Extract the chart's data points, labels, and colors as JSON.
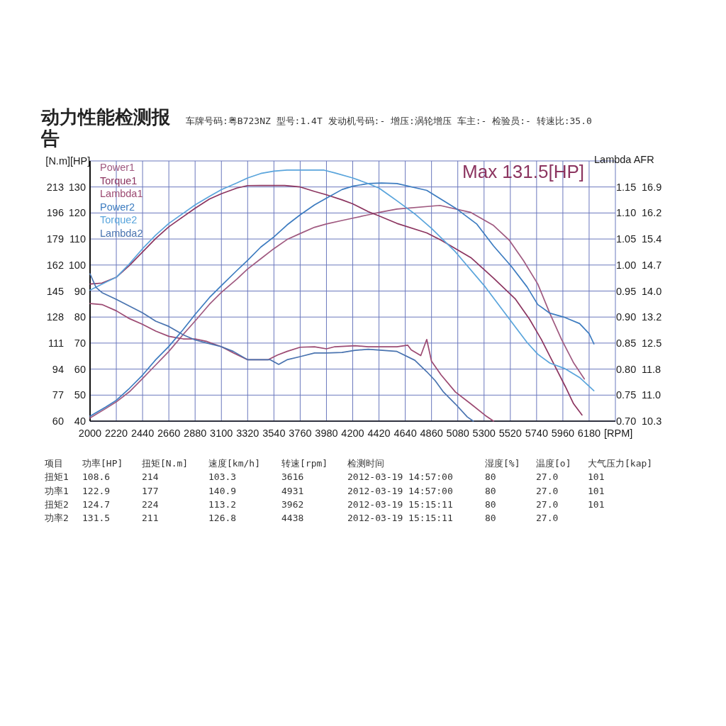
{
  "chart_data": {
    "type": "line",
    "title": "动力性能检测报告",
    "subtitle": "车牌号码:粤B723NZ 型号:1.4T 发动机号码:- 增压:涡轮增压 车主:- 检验员:- 转速比:35.0",
    "xlabel": "[RPM]",
    "ylabel": "[N.m]",
    "y2label": "[HP]",
    "y3label": "Lambda AFR",
    "xlim": [
      2000,
      6400
    ],
    "xticks": [
      2000,
      2220,
      2440,
      2660,
      2880,
      3100,
      3320,
      3540,
      3760,
      3980,
      4200,
      4420,
      4640,
      4860,
      5080,
      5300,
      5520,
      5740,
      5960,
      6180
    ],
    "ylim": [
      60,
      230
    ],
    "yticks": [
      60,
      77,
      94,
      111,
      128,
      145,
      162,
      179,
      196,
      213
    ],
    "y2lim": [
      40,
      140
    ],
    "y2ticks": [
      40,
      50,
      60,
      70,
      80,
      90,
      100,
      110,
      120,
      130
    ],
    "y3lim": [
      0.7,
      1.2
    ],
    "y3ticks": [
      {
        "value": 0.7,
        "label": "0.70"
      },
      0.75,
      {
        "value": 0.8,
        "label": "0.80"
      },
      0.85,
      {
        "value": 0.9,
        "label": "0.90"
      },
      0.95,
      {
        "value": 1,
        "label": "1.00"
      },
      1.05,
      {
        "value": 1.1,
        "label": "1.10"
      },
      1.15
    ],
    "grid": true,
    "legend": "top left",
    "series": [
      {
        "name": "Power1",
        "color": "#a05a80",
        "axis": "y2",
        "x": [
          2000,
          2130,
          2220,
          2330,
          2440,
          2550,
          2660,
          2780,
          2880,
          3000,
          3100,
          3230,
          3320,
          3430,
          3540,
          3650,
          3760,
          3880,
          3980,
          4110,
          4200,
          4330,
          4420,
          4570,
          4930,
          5190,
          5380,
          5510,
          5630,
          5750,
          5850,
          5950,
          6050,
          6140
        ],
        "values": [
          41.2,
          44.8,
          47.4,
          51.3,
          56.4,
          61.6,
          66.8,
          73.3,
          78.5,
          84.9,
          89.5,
          94.6,
          98.5,
          102.4,
          106.3,
          109.8,
          112.1,
          114.5,
          115.8,
          117.1,
          118,
          119.3,
          120.2,
          121.5,
          122.9,
          120.2,
          115.2,
          109.6,
          101.7,
          92.7,
          81.5,
          71.3,
          62.4,
          56.2
        ]
      },
      {
        "name": "Torque1",
        "color": "#8c3560",
        "axis": "y",
        "x": [
          2000,
          2100,
          2220,
          2330,
          2440,
          2550,
          2660,
          2780,
          2880,
          3000,
          3100,
          3230,
          3320,
          3430,
          3540,
          3630,
          3760,
          3880,
          3980,
          4110,
          4200,
          4330,
          4420,
          4570,
          4820,
          4940,
          5190,
          5380,
          5560,
          5680,
          5780,
          5880,
          5980,
          6050,
          6120
        ],
        "values": [
          149.6,
          150.2,
          154,
          161.7,
          170.5,
          179.3,
          187,
          193.6,
          199.1,
          205.1,
          208.6,
          212.3,
          213.9,
          214,
          214,
          214,
          213,
          210.1,
          207.9,
          204.6,
          202,
          196.9,
          194.1,
          189.2,
          183,
          178.2,
          166.8,
          153.4,
          140,
          126.7,
          113.3,
          98,
          82.7,
          71.3,
          64
        ]
      },
      {
        "name": "Lambda1",
        "color": "#9c4a72",
        "axis": "y3",
        "x": [
          2000,
          2100,
          2220,
          2330,
          2440,
          2550,
          2660,
          2780,
          2880,
          2980,
          3100,
          3200,
          3320,
          3430,
          3490,
          3570,
          3650,
          3760,
          3880,
          3980,
          4050,
          4220,
          4330,
          4570,
          4660,
          4690,
          4770,
          4820,
          4860,
          4940,
          5060,
          5190,
          5310,
          5380
        ],
        "values": [
          0.926,
          0.924,
          0.912,
          0.897,
          0.886,
          0.873,
          0.863,
          0.858,
          0.858,
          0.853,
          0.843,
          0.831,
          0.818,
          0.818,
          0.818,
          0.827,
          0.834,
          0.842,
          0.843,
          0.839,
          0.843,
          0.845,
          0.843,
          0.843,
          0.846,
          0.837,
          0.826,
          0.857,
          0.815,
          0.789,
          0.756,
          0.733,
          0.711,
          0.7
        ]
      },
      {
        "name": "Power2",
        "color": "#3d7cc0",
        "axis": "y2",
        "x": [
          2000,
          2130,
          2220,
          2330,
          2440,
          2550,
          2660,
          2780,
          2880,
          3000,
          3100,
          3230,
          3320,
          3430,
          3540,
          3650,
          3760,
          3880,
          3980,
          4110,
          4200,
          4330,
          4440,
          4570,
          4820,
          5060,
          5240,
          5380,
          5530,
          5660,
          5750,
          5850,
          5980,
          6100,
          6180,
          6220
        ],
        "values": [
          41.9,
          45.4,
          48,
          52.6,
          57.7,
          63.6,
          68.7,
          75.2,
          81,
          87.5,
          92.1,
          97.9,
          101.8,
          106.9,
          110.8,
          115.4,
          119.3,
          123.1,
          125.7,
          129,
          130.3,
          131.3,
          131.5,
          131.3,
          128.7,
          121.9,
          115.7,
          107.3,
          99.4,
          91.6,
          84.8,
          81.5,
          79.8,
          77.5,
          73.6,
          69.7
        ]
      },
      {
        "name": "Torque2",
        "color": "#5aa5dc",
        "axis": "y",
        "x": [
          2000,
          2130,
          2220,
          2330,
          2440,
          2550,
          2660,
          2780,
          2880,
          3000,
          3100,
          3230,
          3320,
          3430,
          3540,
          3650,
          3760,
          3880,
          3960,
          4050,
          4200,
          4330,
          4420,
          4500,
          4570,
          4720,
          4860,
          5060,
          5310,
          5530,
          5660,
          5750,
          5850,
          5980,
          6100,
          6180,
          6220
        ],
        "values": [
          145.6,
          150.7,
          154,
          162.8,
          172.7,
          181.5,
          189.2,
          195.8,
          201.3,
          206.8,
          211.2,
          215.6,
          218.9,
          221.8,
          223.3,
          224,
          224,
          224,
          224,
          222.2,
          218.9,
          215.2,
          212.3,
          207.9,
          204,
          195.4,
          185.9,
          170.6,
          147.7,
          124.8,
          111.4,
          103.7,
          98,
          94.2,
          88.5,
          82.7,
          79.9
        ]
      },
      {
        "name": "Lambda2",
        "color": "#4a74b0",
        "axis": "y3",
        "x": [
          2000,
          2050,
          2100,
          2220,
          2330,
          2440,
          2550,
          2660,
          2780,
          2880,
          2980,
          3100,
          3200,
          3320,
          3430,
          3510,
          3580,
          3650,
          3760,
          3880,
          3980,
          4110,
          4220,
          4330,
          4570,
          4720,
          4820,
          4890,
          4960,
          5060,
          5160,
          5210
        ],
        "values": [
          0.983,
          0.957,
          0.947,
          0.934,
          0.921,
          0.908,
          0.892,
          0.882,
          0.866,
          0.856,
          0.85,
          0.843,
          0.834,
          0.818,
          0.818,
          0.818,
          0.809,
          0.818,
          0.824,
          0.831,
          0.831,
          0.832,
          0.836,
          0.838,
          0.834,
          0.817,
          0.795,
          0.778,
          0.756,
          0.733,
          0.708,
          0.7
        ]
      }
    ],
    "annotations": [
      "Max 131.5[HP]",
      "10.3",
      "11.0",
      "11.8",
      "12.5",
      "13.2",
      "14.0",
      "14.7",
      "15.4",
      "16.2",
      "16.9",
      "项目",
      "功率[HP]",
      "扭矩[N.m]",
      "速度[km/h]",
      "转速[rpm]",
      "检测时间",
      "湿度[%]",
      "温度[o]",
      "大气压力[kap]",
      "扭矩1",
      "108.6",
      "214",
      "103.3",
      "3616",
      "2012-03-19 14:57:00",
      "80",
      "27.0",
      "101",
      "功率1",
      "122.9",
      "177",
      "140.9",
      "4931",
      "2012-03-19 14:57:00",
      "80",
      "27.0",
      "101",
      "扭矩2",
      "124.7",
      "224",
      "113.2",
      "3962",
      "2012-03-19 15:15:11",
      "80",
      "27.0",
      "101",
      "功率2",
      "131.5",
      "211",
      "126.8",
      "4438",
      "2012-03-19 15:15:11",
      "80",
      "27.0"
    ]
  }
}
